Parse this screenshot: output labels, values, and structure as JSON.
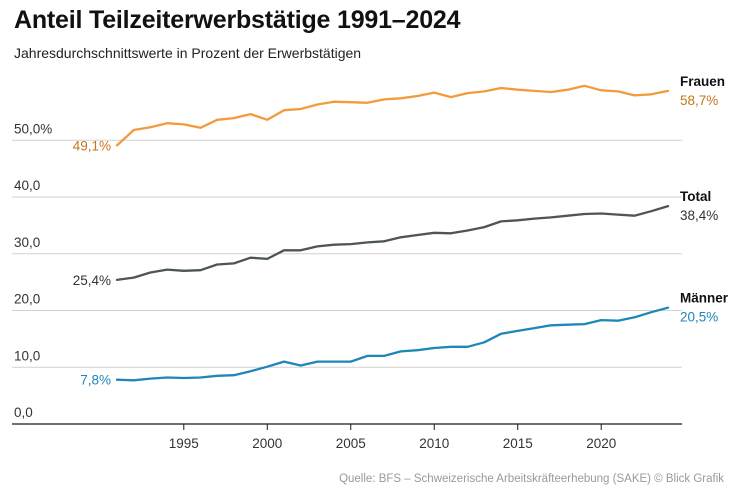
{
  "chart_data": {
    "type": "line",
    "title": "Anteil Teilzeiterwerbstätige 1991–2024",
    "subtitle": "Jahresdurchschnittswerte in Prozent der Erwerbstätigen",
    "xlabel": "",
    "ylabel": "",
    "xlim": [
      1991,
      2024
    ],
    "ylim": [
      0,
      60
    ],
    "x_ticks": [
      1995,
      2000,
      2005,
      2010,
      2015,
      2020
    ],
    "x_tick_labels": [
      "1995",
      "2000",
      "2005",
      "2010",
      "2015",
      "2020"
    ],
    "y_ticks": [
      0,
      10,
      20,
      30,
      40,
      50
    ],
    "y_tick_labels": [
      "0,0",
      "10,0",
      "20,0",
      "30,0",
      "40,0",
      "50,0%"
    ],
    "grid": true,
    "x": [
      1991,
      1992,
      1993,
      1994,
      1995,
      1996,
      1997,
      1998,
      1999,
      2000,
      2001,
      2002,
      2003,
      2004,
      2005,
      2006,
      2007,
      2008,
      2009,
      2010,
      2011,
      2012,
      2013,
      2014,
      2015,
      2016,
      2017,
      2018,
      2019,
      2020,
      2021,
      2022,
      2023,
      2024
    ],
    "series": [
      {
        "name": "Frauen",
        "color": "#f39b3c",
        "label_color": "#c6751b",
        "start_label": "49,1%",
        "end_label": "58,7%",
        "values": [
          49.1,
          51.8,
          52.3,
          53.0,
          52.8,
          52.2,
          53.6,
          53.9,
          54.6,
          53.6,
          55.3,
          55.5,
          56.3,
          56.8,
          56.7,
          56.6,
          57.2,
          57.4,
          57.8,
          58.4,
          57.6,
          58.3,
          58.6,
          59.2,
          58.9,
          58.7,
          58.5,
          58.9,
          59.6,
          58.8,
          58.6,
          57.9,
          58.1,
          58.7
        ]
      },
      {
        "name": "Total",
        "color": "#4d5558",
        "label_color": "#333333",
        "start_label": "25,4%",
        "end_label": "38,4%",
        "values": [
          25.4,
          25.8,
          26.7,
          27.2,
          27.0,
          27.1,
          28.1,
          28.3,
          29.3,
          29.1,
          30.6,
          30.6,
          31.3,
          31.6,
          31.7,
          32.0,
          32.2,
          32.9,
          33.3,
          33.7,
          33.6,
          34.1,
          34.7,
          35.7,
          35.9,
          36.2,
          36.4,
          36.7,
          37.0,
          37.1,
          36.9,
          36.7,
          37.5,
          38.4
        ]
      },
      {
        "name": "Männer",
        "color": "#1f86b8",
        "label_color": "#1f86b8",
        "start_label": "7,8%",
        "end_label": "20,5%",
        "values": [
          7.8,
          7.7,
          8.0,
          8.2,
          8.1,
          8.2,
          8.5,
          8.6,
          9.3,
          10.1,
          11.0,
          10.3,
          11.0,
          11.0,
          11.0,
          12.0,
          12.0,
          12.8,
          13.0,
          13.4,
          13.6,
          13.6,
          14.4,
          15.9,
          16.4,
          16.9,
          17.4,
          17.5,
          17.6,
          18.3,
          18.2,
          18.8,
          19.7,
          20.5
        ]
      }
    ],
    "source": "Quelle: BFS – Schweizerische Arbeitskräfteerhebung (SAKE) © Blick Grafik"
  }
}
